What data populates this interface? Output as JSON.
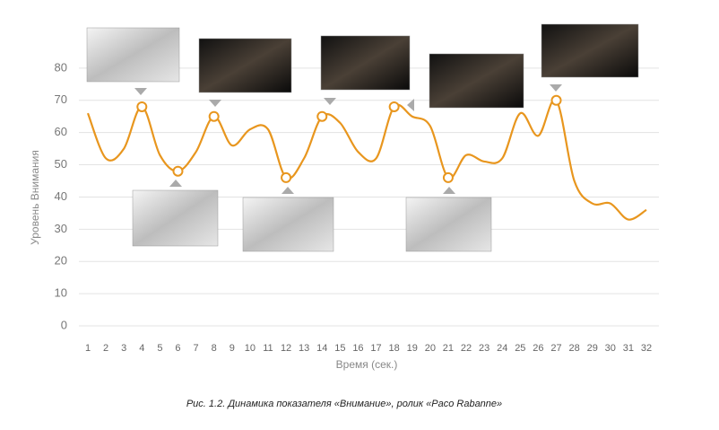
{
  "chart_data": {
    "type": "line",
    "y_label": "Уровень Внимания",
    "x_label": "Время (сек.)",
    "caption": "Рис. 1.2. Динамика показателя «Внимание», ролик «Paco Rabanne»",
    "categories": [
      "1",
      "2",
      "3",
      "4",
      "5",
      "6",
      "7",
      "8",
      "9",
      "10",
      "11",
      "12",
      "13",
      "14",
      "15",
      "16",
      "17",
      "18",
      "19",
      "20",
      "21",
      "22",
      "23",
      "24",
      "25",
      "26",
      "27",
      "28",
      "29",
      "30",
      "31",
      "32"
    ],
    "series": [
      {
        "name": "Внимание",
        "color": "#e8961e",
        "values": [
          66,
          52,
          55,
          68,
          53,
          48,
          54,
          65,
          56,
          61,
          61,
          46,
          52,
          65,
          63,
          54,
          52,
          68,
          65,
          62,
          46,
          53,
          51,
          52,
          66,
          59,
          70,
          45,
          38,
          38,
          33,
          36
        ]
      }
    ],
    "highlight_points": [
      3,
      5,
      7,
      11,
      13,
      17,
      20,
      26
    ],
    "ylim": [
      0,
      90
    ],
    "yticks": [
      0,
      10,
      20,
      30,
      40,
      50,
      60,
      70,
      80
    ],
    "grid": true
  }
}
